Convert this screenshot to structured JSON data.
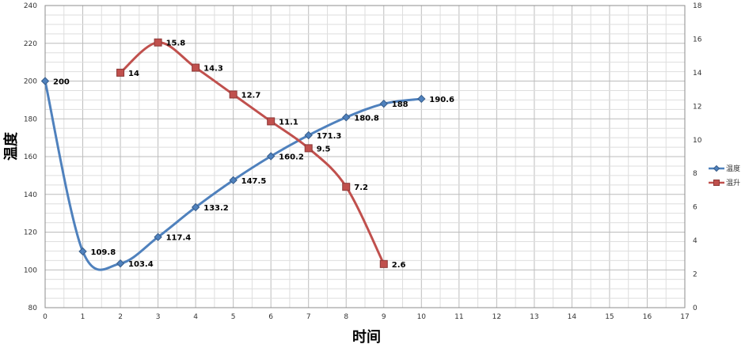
{
  "chart_data": {
    "type": "line",
    "xlabel": "时间",
    "ylabel": "温度",
    "xlim": [
      0,
      17
    ],
    "ylim": [
      80,
      240
    ],
    "y2lim": [
      0,
      18
    ],
    "x_ticks": [
      0,
      1,
      2,
      3,
      4,
      5,
      6,
      7,
      8,
      9,
      10,
      11,
      12,
      13,
      14,
      15,
      16,
      17
    ],
    "y_ticks": [
      80,
      100,
      120,
      140,
      160,
      180,
      200,
      220,
      240
    ],
    "y2_ticks": [
      0,
      2,
      4,
      6,
      8,
      10,
      12,
      14,
      16,
      18
    ],
    "grid": true,
    "legend": "right",
    "series": [
      {
        "name": "温度",
        "axis": "left",
        "color": "#4F81BD",
        "marker": "diamond",
        "x": [
          0,
          1,
          2,
          3,
          4,
          5,
          6,
          7,
          8,
          9,
          10
        ],
        "values": [
          200,
          109.8,
          103.4,
          117.4,
          133.2,
          147.5,
          160.2,
          171.3,
          180.8,
          188,
          190.6
        ],
        "labels": [
          "200",
          "109.8",
          "103.4",
          "117.4",
          "133.2",
          "147.5",
          "160.2",
          "171.3",
          "180.8",
          "188",
          "190.6"
        ]
      },
      {
        "name": "温升",
        "axis": "right",
        "color": "#C0504D",
        "marker": "square",
        "x": [
          2,
          3,
          4,
          5,
          6,
          7,
          8,
          9
        ],
        "values": [
          14,
          15.8,
          14.3,
          12.7,
          11.1,
          9.5,
          7.2,
          2.6
        ],
        "labels": [
          "14",
          "15.8",
          "14.3",
          "12.7",
          "11.1",
          "9.5",
          "7.2",
          "2.6"
        ]
      }
    ]
  }
}
